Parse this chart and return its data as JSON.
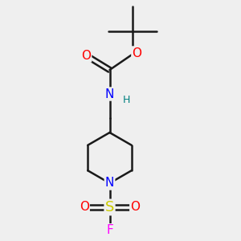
{
  "background_color": "#efefef",
  "bond_color": "#1a1a1a",
  "bond_width": 1.8,
  "atom_colors": {
    "O": "#ff0000",
    "N": "#0000ff",
    "S": "#cccc00",
    "F": "#ff00ff",
    "C": "#1a1a1a",
    "H": "#008080"
  },
  "font_size": 11,
  "fig_width": 3.0,
  "fig_height": 3.0,
  "dpi": 100
}
